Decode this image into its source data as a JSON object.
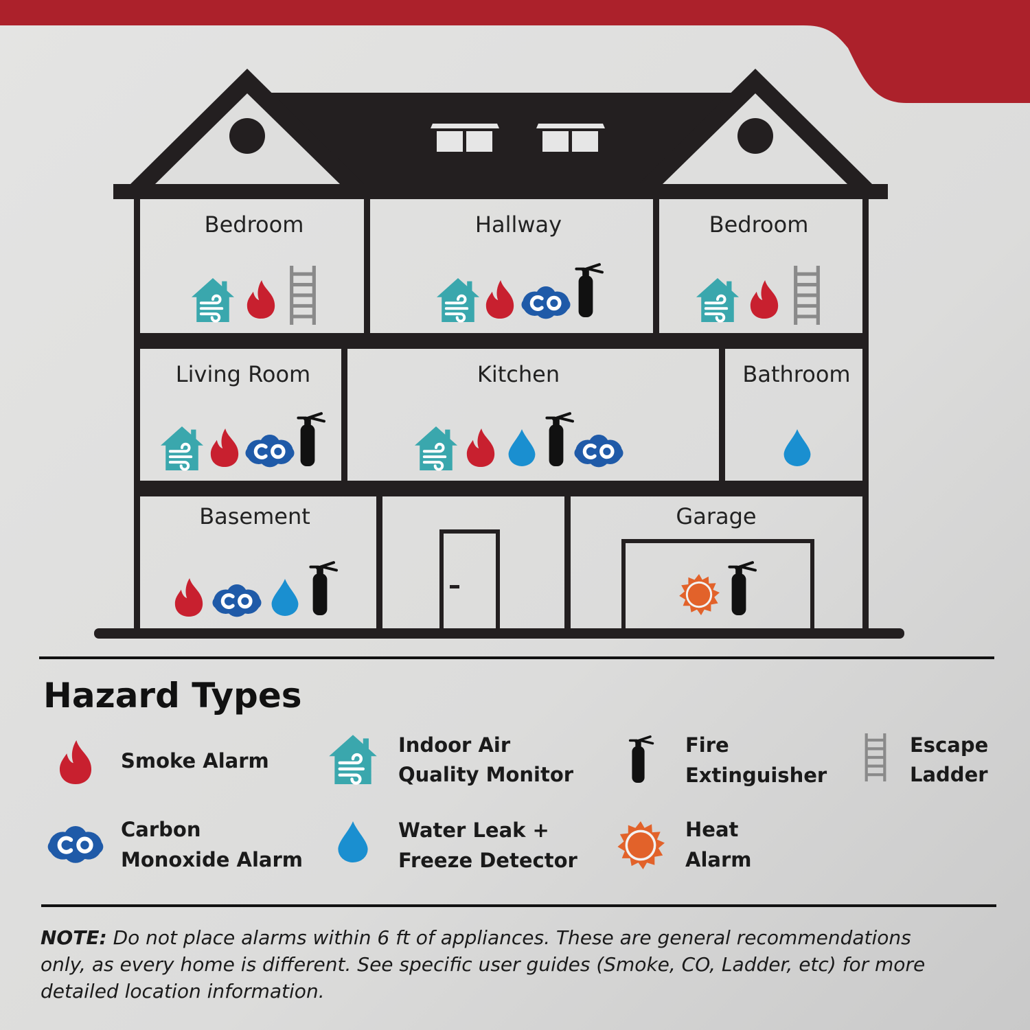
{
  "colors": {
    "banner": "#ac212b",
    "house": "#231f20",
    "smoke": "#c8202f",
    "air": "#3aa7ad",
    "co": "#1f5aa8",
    "water": "#1a8fd0",
    "ladder": "#8a8a8a",
    "heat": "#e2622a",
    "extinguisher": "#111111"
  },
  "rooms": {
    "bedroom_left": {
      "label": "Bedroom",
      "icons": [
        "air-quality-icon",
        "flame-icon",
        "ladder-icon"
      ]
    },
    "hallway": {
      "label": "Hallway",
      "icons": [
        "air-quality-icon",
        "flame-icon",
        "co-icon",
        "extinguisher-icon"
      ]
    },
    "bedroom_right": {
      "label": "Bedroom",
      "icons": [
        "air-quality-icon",
        "flame-icon",
        "ladder-icon"
      ]
    },
    "living_room": {
      "label": "Living Room",
      "icons": [
        "air-quality-icon",
        "flame-icon",
        "co-icon",
        "extinguisher-icon"
      ]
    },
    "kitchen": {
      "label": "Kitchen",
      "icons": [
        "air-quality-icon",
        "flame-icon",
        "water-drop-icon",
        "extinguisher-icon",
        "co-icon"
      ]
    },
    "bathroom": {
      "label": "Bathroom",
      "icons": [
        "water-drop-icon"
      ]
    },
    "basement": {
      "label": "Basement",
      "icons": [
        "flame-icon",
        "co-icon",
        "water-drop-icon",
        "extinguisher-icon"
      ]
    },
    "garage": {
      "label": "Garage",
      "icons": [
        "sun-icon",
        "extinguisher-icon"
      ]
    }
  },
  "legend": {
    "title": "Hazard Types",
    "items": [
      {
        "icon": "flame-icon",
        "line1": "Smoke Alarm",
        "line2": ""
      },
      {
        "icon": "air-quality-icon",
        "line1": "Indoor Air",
        "line2": "Quality Monitor"
      },
      {
        "icon": "extinguisher-icon",
        "line1": "Fire",
        "line2": "Extinguisher"
      },
      {
        "icon": "ladder-icon",
        "line1": "Escape",
        "line2": "Ladder"
      },
      {
        "icon": "co-icon",
        "line1": "Carbon",
        "line2": "Monoxide Alarm"
      },
      {
        "icon": "water-drop-icon",
        "line1": "Water Leak +",
        "line2": "Freeze Detector"
      },
      {
        "icon": "sun-icon",
        "line1": "Heat",
        "line2": "Alarm"
      }
    ]
  },
  "note": {
    "label": "NOTE:",
    "line1": " Do not place alarms within 6 ft of appliances. These are general recommendations",
    "line2": "only, as every home is different. See specific user guides (Smoke, CO, Ladder, etc) for more",
    "line3": "detailed location information."
  }
}
